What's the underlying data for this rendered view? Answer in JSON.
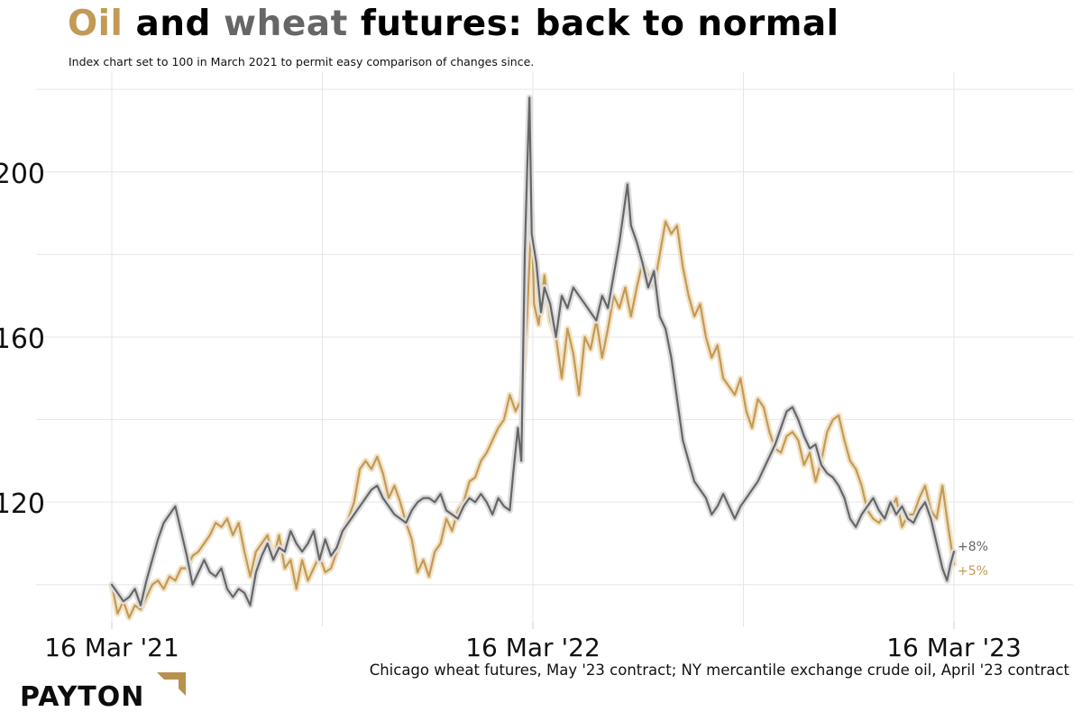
{
  "title": {
    "word_oil": "Oil",
    "word_and": "and",
    "word_wheat": "wheat",
    "word_rest": "futures: back to normal"
  },
  "subtitle": "Index chart set to 100 in March 2021 to permit easy comparison of changes since.",
  "source": "Chicago wheat futures, May '23 contract; NY mercantile exchange crude oil, April '23 contract",
  "logo": "PAYTON",
  "colors": {
    "oil": "#c19a56",
    "wheat": "#666666",
    "grid": "#e6e6e6",
    "logo_accent": "#b89050"
  },
  "chart_data": {
    "type": "line",
    "title": "Oil and wheat futures: back to normal",
    "xlabel": "",
    "ylabel": "",
    "x_ticks": [
      "16 Mar '21",
      "16 Mar '22",
      "16 Mar '23"
    ],
    "x_range_days": [
      0,
      730
    ],
    "ylim": [
      91,
      222
    ],
    "y_ticks": [
      120,
      160,
      200
    ],
    "grid": true,
    "series": [
      {
        "name": "Oil",
        "end_label": "+5%",
        "points": [
          [
            0,
            100
          ],
          [
            5,
            93
          ],
          [
            10,
            96
          ],
          [
            15,
            92
          ],
          [
            20,
            95
          ],
          [
            25,
            94
          ],
          [
            30,
            97
          ],
          [
            35,
            100
          ],
          [
            40,
            101
          ],
          [
            45,
            99
          ],
          [
            50,
            102
          ],
          [
            55,
            101
          ],
          [
            60,
            104
          ],
          [
            65,
            104
          ],
          [
            70,
            107
          ],
          [
            75,
            108
          ],
          [
            80,
            110
          ],
          [
            85,
            112
          ],
          [
            90,
            115
          ],
          [
            95,
            114
          ],
          [
            100,
            116
          ],
          [
            105,
            112
          ],
          [
            110,
            115
          ],
          [
            115,
            108
          ],
          [
            120,
            102
          ],
          [
            125,
            108
          ],
          [
            130,
            110
          ],
          [
            135,
            112
          ],
          [
            140,
            106
          ],
          [
            145,
            112
          ],
          [
            150,
            104
          ],
          [
            155,
            106
          ],
          [
            160,
            99
          ],
          [
            165,
            106
          ],
          [
            170,
            101
          ],
          [
            175,
            104
          ],
          [
            180,
            107
          ],
          [
            185,
            103
          ],
          [
            190,
            104
          ],
          [
            195,
            108
          ],
          [
            200,
            112
          ],
          [
            205,
            116
          ],
          [
            210,
            120
          ],
          [
            215,
            128
          ],
          [
            220,
            130
          ],
          [
            225,
            128
          ],
          [
            230,
            131
          ],
          [
            235,
            127
          ],
          [
            240,
            121
          ],
          [
            245,
            124
          ],
          [
            250,
            120
          ],
          [
            255,
            115
          ],
          [
            260,
            111
          ],
          [
            265,
            103
          ],
          [
            270,
            106
          ],
          [
            275,
            102
          ],
          [
            280,
            108
          ],
          [
            285,
            110
          ],
          [
            290,
            116
          ],
          [
            295,
            113
          ],
          [
            300,
            118
          ],
          [
            305,
            120
          ],
          [
            310,
            125
          ],
          [
            315,
            126
          ],
          [
            320,
            130
          ],
          [
            325,
            132
          ],
          [
            330,
            135
          ],
          [
            335,
            138
          ],
          [
            340,
            140
          ],
          [
            345,
            146
          ],
          [
            350,
            142
          ],
          [
            355,
            145
          ],
          [
            360,
            165
          ],
          [
            362,
            178
          ],
          [
            364,
            190
          ],
          [
            366,
            168
          ],
          [
            370,
            163
          ],
          [
            375,
            175
          ],
          [
            380,
            164
          ],
          [
            385,
            160
          ],
          [
            390,
            150
          ],
          [
            395,
            162
          ],
          [
            400,
            156
          ],
          [
            405,
            146
          ],
          [
            410,
            160
          ],
          [
            415,
            157
          ],
          [
            420,
            164
          ],
          [
            425,
            155
          ],
          [
            430,
            162
          ],
          [
            435,
            170
          ],
          [
            440,
            167
          ],
          [
            445,
            172
          ],
          [
            450,
            165
          ],
          [
            455,
            172
          ],
          [
            460,
            178
          ],
          [
            465,
            175
          ],
          [
            470,
            172
          ],
          [
            475,
            180
          ],
          [
            480,
            188
          ],
          [
            485,
            185
          ],
          [
            490,
            187
          ],
          [
            495,
            177
          ],
          [
            500,
            170
          ],
          [
            505,
            165
          ],
          [
            510,
            168
          ],
          [
            515,
            160
          ],
          [
            520,
            155
          ],
          [
            525,
            158
          ],
          [
            530,
            150
          ],
          [
            535,
            148
          ],
          [
            540,
            146
          ],
          [
            545,
            150
          ],
          [
            550,
            142
          ],
          [
            555,
            138
          ],
          [
            560,
            145
          ],
          [
            565,
            143
          ],
          [
            570,
            137
          ],
          [
            575,
            133
          ],
          [
            580,
            132
          ],
          [
            585,
            136
          ],
          [
            590,
            137
          ],
          [
            595,
            135
          ],
          [
            600,
            129
          ],
          [
            605,
            132
          ],
          [
            610,
            125
          ],
          [
            615,
            130
          ],
          [
            620,
            137
          ],
          [
            625,
            140
          ],
          [
            630,
            141
          ],
          [
            635,
            135
          ],
          [
            640,
            130
          ],
          [
            645,
            128
          ],
          [
            650,
            124
          ],
          [
            655,
            118
          ],
          [
            660,
            116
          ],
          [
            665,
            115
          ],
          [
            670,
            117
          ],
          [
            675,
            118
          ],
          [
            680,
            121
          ],
          [
            685,
            114
          ],
          [
            690,
            117
          ],
          [
            695,
            117
          ],
          [
            700,
            121
          ],
          [
            705,
            124
          ],
          [
            710,
            118
          ],
          [
            715,
            116
          ],
          [
            720,
            124
          ],
          [
            725,
            114
          ],
          [
            730,
            105
          ]
        ]
      },
      {
        "name": "Wheat",
        "end_label": "+8%",
        "points": [
          [
            0,
            100
          ],
          [
            5,
            98
          ],
          [
            10,
            96
          ],
          [
            15,
            97
          ],
          [
            20,
            99
          ],
          [
            25,
            95
          ],
          [
            30,
            101
          ],
          [
            35,
            106
          ],
          [
            40,
            111
          ],
          [
            45,
            115
          ],
          [
            50,
            117
          ],
          [
            55,
            119
          ],
          [
            60,
            113
          ],
          [
            65,
            107
          ],
          [
            70,
            100
          ],
          [
            75,
            103
          ],
          [
            80,
            106
          ],
          [
            85,
            103
          ],
          [
            90,
            102
          ],
          [
            95,
            104
          ],
          [
            100,
            99
          ],
          [
            105,
            97
          ],
          [
            110,
            99
          ],
          [
            115,
            98
          ],
          [
            120,
            95
          ],
          [
            125,
            103
          ],
          [
            130,
            107
          ],
          [
            135,
            110
          ],
          [
            140,
            106
          ],
          [
            145,
            109
          ],
          [
            150,
            108
          ],
          [
            155,
            113
          ],
          [
            160,
            110
          ],
          [
            165,
            108
          ],
          [
            170,
            110
          ],
          [
            175,
            113
          ],
          [
            180,
            106
          ],
          [
            185,
            111
          ],
          [
            190,
            107
          ],
          [
            195,
            109
          ],
          [
            200,
            113
          ],
          [
            205,
            115
          ],
          [
            210,
            117
          ],
          [
            215,
            119
          ],
          [
            220,
            121
          ],
          [
            225,
            123
          ],
          [
            230,
            124
          ],
          [
            235,
            121
          ],
          [
            240,
            119
          ],
          [
            245,
            117
          ],
          [
            250,
            116
          ],
          [
            255,
            115
          ],
          [
            260,
            118
          ],
          [
            265,
            120
          ],
          [
            270,
            121
          ],
          [
            275,
            121
          ],
          [
            280,
            120
          ],
          [
            285,
            122
          ],
          [
            290,
            118
          ],
          [
            295,
            117
          ],
          [
            300,
            116
          ],
          [
            305,
            119
          ],
          [
            310,
            121
          ],
          [
            315,
            120
          ],
          [
            320,
            122
          ],
          [
            325,
            120
          ],
          [
            330,
            117
          ],
          [
            335,
            121
          ],
          [
            340,
            119
          ],
          [
            345,
            118
          ],
          [
            348,
            127
          ],
          [
            352,
            138
          ],
          [
            355,
            130
          ],
          [
            358,
            180
          ],
          [
            360,
            200
          ],
          [
            362,
            218
          ],
          [
            364,
            185
          ],
          [
            368,
            178
          ],
          [
            372,
            166
          ],
          [
            375,
            172
          ],
          [
            380,
            168
          ],
          [
            385,
            160
          ],
          [
            390,
            170
          ],
          [
            395,
            167
          ],
          [
            400,
            172
          ],
          [
            405,
            170
          ],
          [
            410,
            168
          ],
          [
            415,
            166
          ],
          [
            420,
            164
          ],
          [
            425,
            170
          ],
          [
            430,
            167
          ],
          [
            435,
            175
          ],
          [
            440,
            183
          ],
          [
            445,
            193
          ],
          [
            447,
            197
          ],
          [
            450,
            187
          ],
          [
            455,
            183
          ],
          [
            460,
            178
          ],
          [
            465,
            172
          ],
          [
            470,
            176
          ],
          [
            475,
            165
          ],
          [
            480,
            162
          ],
          [
            485,
            155
          ],
          [
            490,
            145
          ],
          [
            495,
            135
          ],
          [
            500,
            130
          ],
          [
            505,
            125
          ],
          [
            510,
            123
          ],
          [
            515,
            121
          ],
          [
            520,
            117
          ],
          [
            525,
            119
          ],
          [
            530,
            122
          ],
          [
            535,
            119
          ],
          [
            540,
            116
          ],
          [
            545,
            119
          ],
          [
            550,
            121
          ],
          [
            555,
            123
          ],
          [
            560,
            125
          ],
          [
            565,
            128
          ],
          [
            570,
            131
          ],
          [
            575,
            134
          ],
          [
            580,
            138
          ],
          [
            585,
            142
          ],
          [
            590,
            143
          ],
          [
            595,
            140
          ],
          [
            600,
            136
          ],
          [
            605,
            133
          ],
          [
            610,
            134
          ],
          [
            615,
            129
          ],
          [
            620,
            127
          ],
          [
            625,
            126
          ],
          [
            630,
            124
          ],
          [
            635,
            121
          ],
          [
            640,
            116
          ],
          [
            645,
            114
          ],
          [
            650,
            117
          ],
          [
            655,
            119
          ],
          [
            660,
            121
          ],
          [
            665,
            118
          ],
          [
            670,
            116
          ],
          [
            675,
            120
          ],
          [
            680,
            117
          ],
          [
            685,
            119
          ],
          [
            690,
            116
          ],
          [
            695,
            115
          ],
          [
            700,
            118
          ],
          [
            705,
            120
          ],
          [
            710,
            116
          ],
          [
            715,
            110
          ],
          [
            720,
            104
          ],
          [
            724,
            101
          ],
          [
            727,
            105
          ],
          [
            730,
            108
          ]
        ]
      }
    ]
  }
}
